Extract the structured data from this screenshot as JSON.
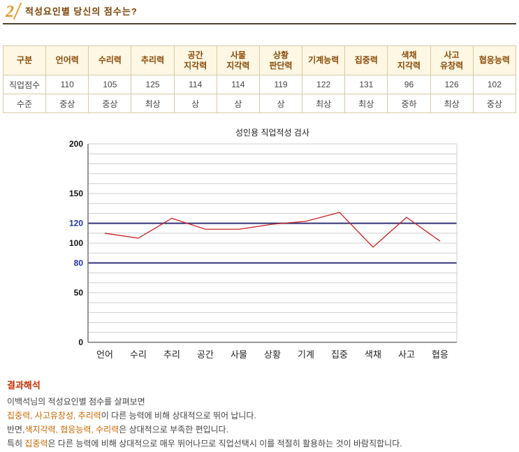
{
  "header": {
    "number": "2",
    "title": "적성요인별 당신의 점수는?"
  },
  "colors": {
    "accent_orange": "#e8992c",
    "title_brown": "#7a4306",
    "table_header_text": "#8a4a08",
    "table_header_bg": "#fdf7e3",
    "table_border": "#d9c9a6",
    "result_title_red": "#c23000",
    "highlight_orange": "#cc6600"
  },
  "table": {
    "columns": [
      "구분",
      "언어력",
      "수리력",
      "추리력",
      "공간\n지각력",
      "사물\n지각력",
      "상황\n판단력",
      "기계능력",
      "집중력",
      "색채\n지각력",
      "사고\n유창력",
      "협응능력"
    ],
    "rows": [
      {
        "label": "직업점수",
        "values": [
          "110",
          "105",
          "125",
          "114",
          "114",
          "119",
          "122",
          "131",
          "96",
          "126",
          "102"
        ]
      },
      {
        "label": "수준",
        "values": [
          "중상",
          "중상",
          "최상",
          "상",
          "상",
          "상",
          "최상",
          "최상",
          "중하",
          "최상",
          "중상"
        ]
      }
    ]
  },
  "chart_data": {
    "type": "line",
    "title": "성인용 직업적성 검사",
    "categories": [
      "언어",
      "수리",
      "추리",
      "공간",
      "사물",
      "상황",
      "기계",
      "집중",
      "색채",
      "사고",
      "협응"
    ],
    "values": [
      110,
      105,
      125,
      114,
      114,
      119,
      122,
      131,
      96,
      126,
      102
    ],
    "ylim": [
      0,
      200
    ],
    "yticks": [
      200,
      150,
      120,
      100,
      80,
      50,
      0
    ],
    "highlight_yticks": [
      120,
      80
    ],
    "reference_lines": [
      120,
      80
    ],
    "grid_step": 10,
    "grid_on": true,
    "legend": "none",
    "line_color": "#cc2222",
    "reference_color": "#333377",
    "grid_color": "#cfcfcf",
    "axis_color": "#777777",
    "tick_label_color": "#111111",
    "highlight_tick_color": "#2233aa"
  },
  "result": {
    "title": "결과해석",
    "lines": [
      [
        {
          "t": "이백석님의 적성요인별 점수를 살펴보면",
          "hl": false
        }
      ],
      [
        {
          "t": "집중력, 사고유창성, 추리력",
          "hl": true
        },
        {
          "t": "이 다른 능력에 비해 상대적으로 뛰어 납니다.",
          "hl": false
        }
      ],
      [
        {
          "t": "반면,",
          "hl": false
        },
        {
          "t": "색지각력, 협응능력, 수리력",
          "hl": true
        },
        {
          "t": "은 상대적으로 부족한 편입니다.",
          "hl": false
        }
      ],
      [
        {
          "t": "특히 ",
          "hl": false
        },
        {
          "t": "집중력",
          "hl": true
        },
        {
          "t": "은 다른 능력에 비해 상대적으로 매우 뛰어나므로 직업선택시 이를 적절히 활용하는 것이 바람직합니다.",
          "hl": false
        }
      ]
    ]
  }
}
